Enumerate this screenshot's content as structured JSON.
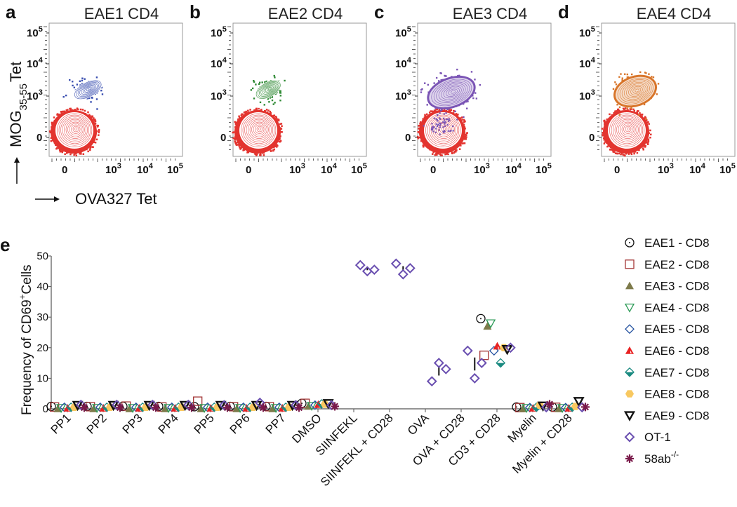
{
  "panels": [
    {
      "letter": "a",
      "title": "EAE1 CD4",
      "color": "#3a4fb0"
    },
    {
      "letter": "b",
      "title": "EAE2 CD4",
      "color": "#2f8a35"
    },
    {
      "letter": "c",
      "title": "EAE3 CD4",
      "color": "#7b55b5"
    },
    {
      "letter": "d",
      "title": "EAE4 CD4",
      "color": "#d8752a"
    }
  ],
  "flow_axes": {
    "negative_color": "#e3342f",
    "y_label": {
      "main": "MOG",
      "sub": "35-55",
      "end": "Tet"
    },
    "x_label": "OVA327 Tet",
    "y_ticks": [
      {
        "base": "10",
        "exp": "5"
      },
      {
        "base": "10",
        "exp": "4"
      },
      {
        "base": "10",
        "exp": "3"
      },
      {
        "base": "0",
        "exp": ""
      }
    ],
    "x_ticks": [
      {
        "base": "0",
        "exp": ""
      },
      {
        "base": "10",
        "exp": "3"
      },
      {
        "base": "10",
        "exp": "4"
      },
      {
        "base": "10",
        "exp": "5"
      }
    ]
  },
  "panel_e_letter": "e",
  "chart_data": {
    "type": "scatter",
    "title": "",
    "ylabel": {
      "main": "Frequency  of CD69",
      "sup": "+",
      "end": "Cells"
    },
    "xlabel": "",
    "ylim": [
      0,
      50
    ],
    "yticks": [
      "0",
      "10",
      "20",
      "30",
      "40",
      "50"
    ],
    "ytick_values": [
      0,
      10,
      20,
      30,
      40,
      50
    ],
    "categories": [
      "PP1",
      "PP2",
      "PP3",
      "PP4",
      "PP5",
      "PP6",
      "PP7",
      "DMSO",
      "SIINFEKL",
      "SIINFEKL + CD28",
      "OVA",
      "OVA + CD28",
      "CD3 + CD28",
      "Myelin",
      "Myelin + CD28"
    ],
    "legend_position": "right",
    "series": [
      {
        "name": "EAE1 - CD8",
        "marker": "circle-open",
        "color": "#111111",
        "values": [
          0.8,
          0.8,
          0.8,
          0.8,
          0.7,
          0.8,
          0.8,
          1.8,
          null,
          null,
          null,
          null,
          29.5,
          0.6,
          0.6
        ]
      },
      {
        "name": "EAE2 - CD8",
        "marker": "square-open",
        "color": "#a33535",
        "values": [
          0.6,
          0.7,
          0.9,
          0.6,
          2.5,
          0.7,
          0.7,
          1.8,
          null,
          null,
          null,
          null,
          17.5,
          0.4,
          0.5
        ]
      },
      {
        "name": "EAE3 - CD8",
        "marker": "triangle-filled",
        "color": "#7d7a4a",
        "values": [
          0,
          0,
          0,
          0,
          0,
          0,
          0,
          0.8,
          null,
          null,
          null,
          null,
          27,
          0,
          0
        ]
      },
      {
        "name": "EAE4 - CD8",
        "marker": "triangle-down-open",
        "color": "#2a9a55",
        "values": [
          0.3,
          0.3,
          0.3,
          0.3,
          0.3,
          0.3,
          0.3,
          1.0,
          null,
          null,
          null,
          null,
          28,
          0.3,
          0.3
        ]
      },
      {
        "name": "EAE5 - CD8",
        "marker": "diamond-open",
        "color": "#2552a0",
        "values": [
          0.5,
          0.5,
          0.5,
          0.5,
          0.5,
          0.5,
          0.5,
          1.2,
          null,
          null,
          null,
          null,
          19,
          0.4,
          0.4
        ]
      },
      {
        "name": "EAE6 - CD8",
        "marker": "triangle-half",
        "color": "#e82222",
        "values": [
          0.2,
          0.2,
          0.2,
          0.2,
          0.2,
          0.2,
          0.2,
          1.4,
          null,
          null,
          null,
          null,
          20.5,
          0.2,
          0.2
        ]
      },
      {
        "name": "EAE7 - CD8",
        "marker": "diamond-half",
        "color": "#1a8a80",
        "values": [
          0.5,
          0.5,
          0.5,
          0.5,
          0.5,
          0.5,
          0.5,
          1.6,
          null,
          null,
          null,
          null,
          15,
          0.5,
          0.5
        ]
      },
      {
        "name": "EAE8 - CD8",
        "marker": "hexagon-filled",
        "color": "#f8c860",
        "values": [
          0.5,
          0.5,
          0.5,
          0.5,
          0.5,
          0.5,
          0.5,
          1.5,
          null,
          null,
          null,
          null,
          20,
          1.2,
          0.8
        ]
      },
      {
        "name": "EAE9 - CD8",
        "marker": "triangle-down-bold",
        "color": "#111111",
        "values": [
          1.2,
          1.2,
          1.2,
          1.2,
          1.2,
          1.2,
          1.2,
          1.8,
          null,
          null,
          null,
          null,
          19.5,
          1.0,
          2.5
        ]
      },
      {
        "name": "OT-1",
        "marker": "diamond-open",
        "color": "#6a4fb0",
        "values": [
          1.3,
          1.3,
          1.3,
          1.3,
          1.2,
          2.0,
          1.2,
          1.2,
          [
            47,
            45,
            45.5
          ],
          [
            47.5,
            44,
            46
          ],
          [
            9,
            15,
            13
          ],
          [
            19,
            10,
            15
          ],
          20,
          0.5,
          0.5
        ]
      },
      {
        "name": "58ab",
        "name_sup": "-/-",
        "marker": "asterisk",
        "color": "#7a1a4a",
        "values": [
          0.4,
          0.4,
          0.4,
          0.4,
          0.4,
          0.4,
          0.4,
          0.8,
          null,
          null,
          null,
          null,
          null,
          1.5,
          0.6
        ]
      }
    ]
  }
}
